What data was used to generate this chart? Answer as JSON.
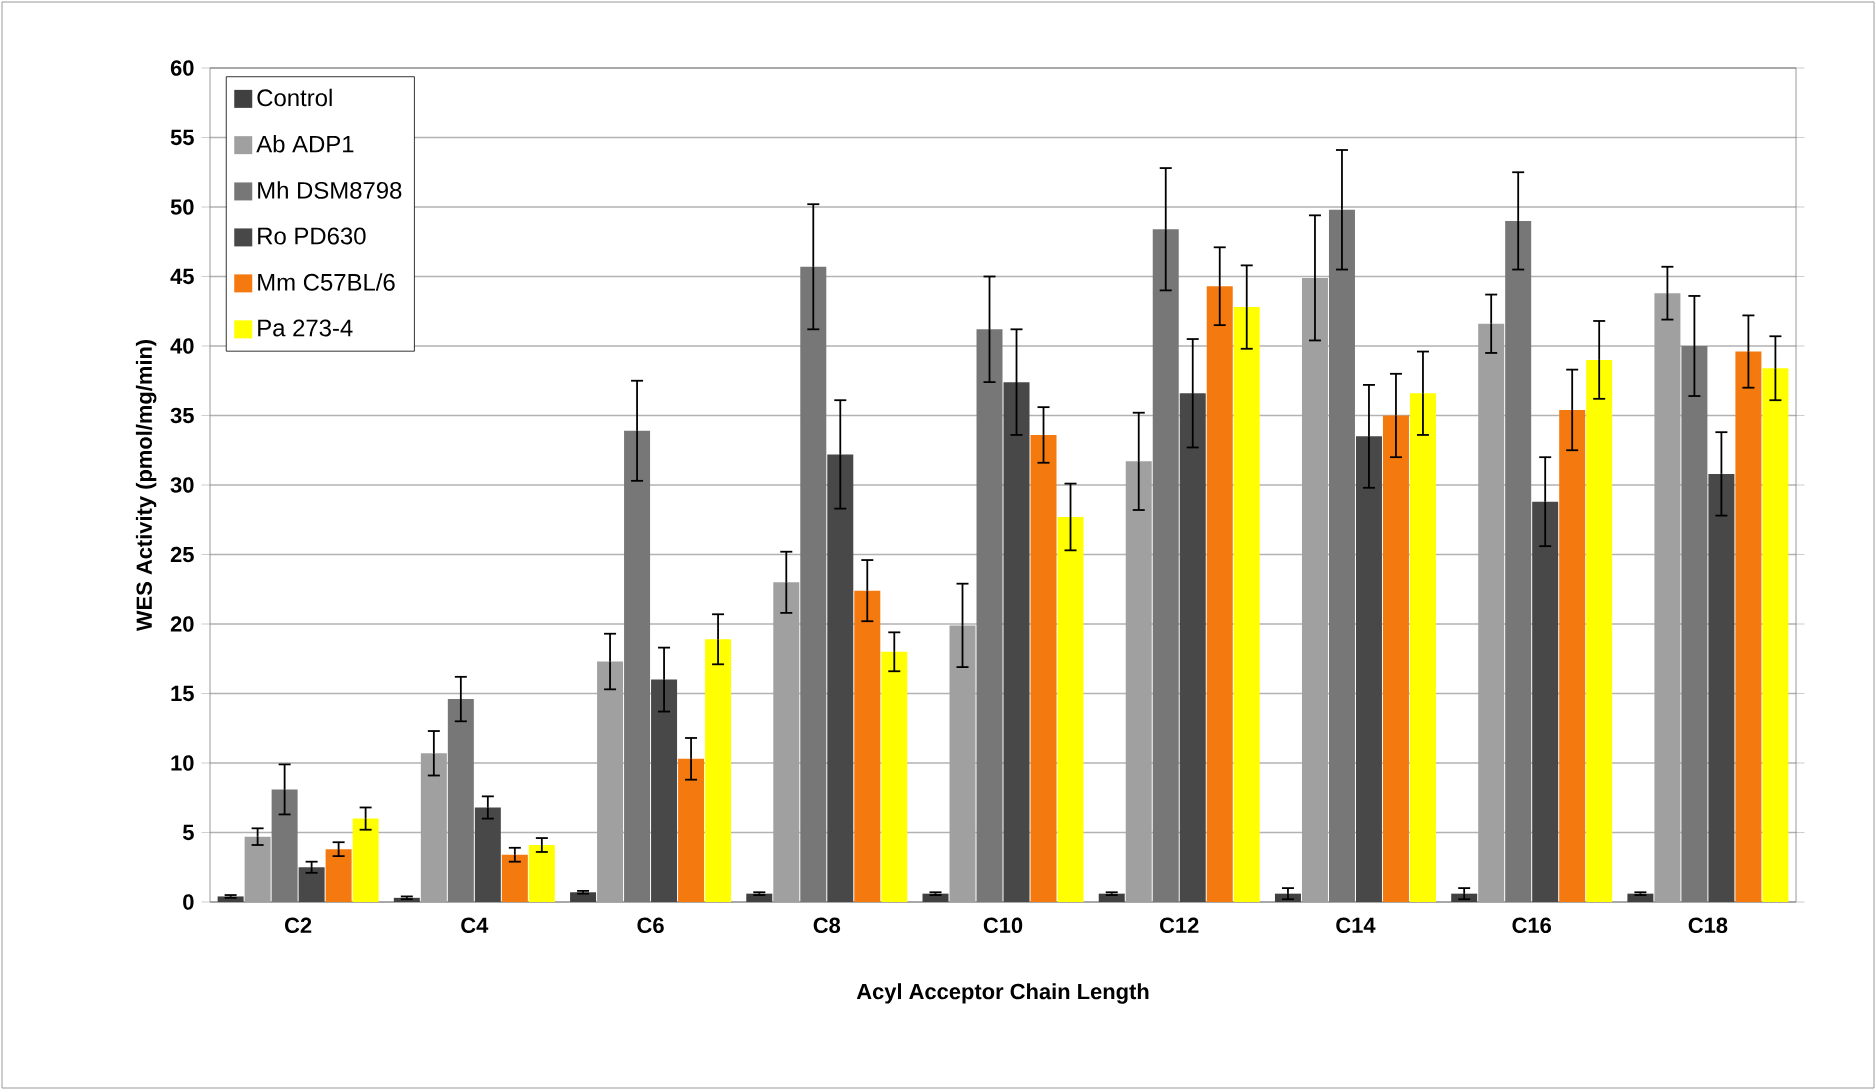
{
  "chart_data": {
    "type": "bar",
    "xlabel": "Acyl Acceptor Chain Length",
    "ylabel": "WES Activity (pmol/mg/min)",
    "categories": [
      "C2",
      "C4",
      "C6",
      "C8",
      "C10",
      "C12",
      "C14",
      "C16",
      "C18"
    ],
    "series": [
      {
        "name": "Control",
        "color": "#404040",
        "values": [
          0.4,
          0.3,
          0.7,
          0.6,
          0.6,
          0.6,
          0.6,
          0.6,
          0.6
        ],
        "errors": [
          0.1,
          0.1,
          0.1,
          0.1,
          0.1,
          0.1,
          0.4,
          0.4,
          0.1
        ]
      },
      {
        "name": "Ab ADP1",
        "color": "#a0a0a0",
        "values": [
          4.7,
          10.7,
          17.3,
          23.0,
          19.9,
          31.7,
          44.9,
          41.6,
          43.8
        ],
        "errors": [
          0.6,
          1.6,
          2.0,
          2.2,
          3.0,
          3.5,
          4.5,
          2.1,
          1.9
        ]
      },
      {
        "name": "Mh DSM8798",
        "color": "#777777",
        "values": [
          8.1,
          14.6,
          33.9,
          45.7,
          41.2,
          48.4,
          49.8,
          49.0,
          40.0
        ],
        "errors": [
          1.8,
          1.6,
          3.6,
          4.5,
          3.8,
          4.4,
          4.3,
          3.5,
          3.6
        ]
      },
      {
        "name": "Ro PD630",
        "color": "#484848",
        "values": [
          2.5,
          6.8,
          16.0,
          32.2,
          37.4,
          36.6,
          33.5,
          28.8,
          30.8
        ],
        "errors": [
          0.4,
          0.8,
          2.3,
          3.9,
          3.8,
          3.9,
          3.7,
          3.2,
          3.0
        ]
      },
      {
        "name": "Mm C57BL/6",
        "color": "#f47a0f",
        "values": [
          3.8,
          3.4,
          10.3,
          22.4,
          33.6,
          44.3,
          35.0,
          35.4,
          39.6
        ],
        "errors": [
          0.5,
          0.5,
          1.5,
          2.2,
          2.0,
          2.8,
          3.0,
          2.9,
          2.6
        ]
      },
      {
        "name": "Pa 273-4",
        "color": "#ffff00",
        "values": [
          6.0,
          4.1,
          18.9,
          18.0,
          27.7,
          42.8,
          36.6,
          39.0,
          38.4
        ],
        "errors": [
          0.8,
          0.5,
          1.8,
          1.4,
          2.4,
          3.0,
          3.0,
          2.8,
          2.3
        ]
      }
    ],
    "ylim": [
      0,
      60
    ],
    "yticks": [
      0,
      5,
      10,
      15,
      20,
      25,
      30,
      35,
      40,
      45,
      50,
      55,
      60
    ],
    "grid": "y",
    "legend": "top left"
  }
}
